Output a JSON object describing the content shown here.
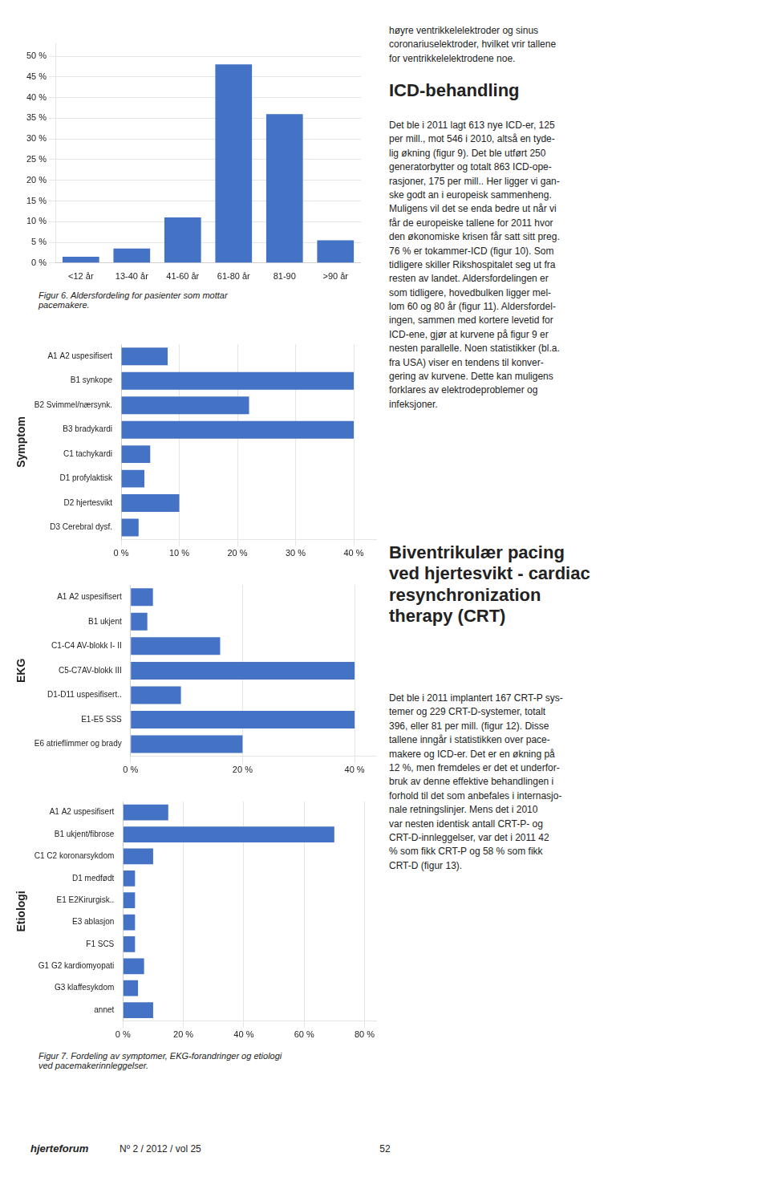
{
  "chart_data": [
    {
      "type": "bar",
      "categories": [
        "<12 år",
        "13-40 år",
        "41-60 år",
        "61-80 år",
        "81-90",
        ">90 år"
      ],
      "values": [
        1.5,
        3.5,
        11,
        48,
        36,
        5.5
      ],
      "color": "#4472C4",
      "ylim": [
        0,
        53
      ],
      "yticks": [
        {
          "value": 0,
          "label": "0 %"
        },
        {
          "value": 5,
          "label": "5 %"
        },
        {
          "value": 10,
          "label": "10 %"
        },
        {
          "value": 15,
          "label": "15 %"
        },
        {
          "value": 20,
          "label": "20 %"
        },
        {
          "value": 25,
          "label": "25 %"
        },
        {
          "value": 30,
          "label": "30 %"
        },
        {
          "value": 35,
          "label": "35 %"
        },
        {
          "value": 40,
          "label": "40 %"
        },
        {
          "value": 45,
          "label": "45 %"
        },
        {
          "value": 50,
          "label": "50 %"
        }
      ],
      "grid": true,
      "annotations": [
        "Figur 6. Aldersfordeling for pasienter som mottar\npacemakere."
      ]
    },
    {
      "type": "bar",
      "orientation": "horizontal",
      "ylabel": "Symptom",
      "categories": [
        "A1 A2 uspesifisert",
        "B1 synkope",
        "B2 Svimmel/nærsynk.",
        "B3 bradykardi",
        "C1 tachykardi",
        "D1 profylaktisk",
        "D2 hjertesvikt",
        "D3 Cerebral dysf."
      ],
      "values": [
        8,
        40,
        22,
        40,
        5,
        4,
        10,
        3
      ],
      "color": "#4472C4",
      "xlim": [
        0,
        44
      ],
      "xticks": [
        {
          "value": 0,
          "label": "0 %"
        },
        {
          "value": 10,
          "label": "10 %"
        },
        {
          "value": 20,
          "label": "20 %"
        },
        {
          "value": 30,
          "label": "30 %"
        },
        {
          "value": 40,
          "label": "40 %"
        }
      ],
      "grid": true
    },
    {
      "type": "bar",
      "orientation": "horizontal",
      "ylabel": "EKG",
      "categories": [
        "A1 A2 uspesifisert",
        "B1 ukjent",
        "C1-C4 AV-blokk I- II",
        "C5-C7AV-blokk III",
        "D1-D11 uspesifisert..",
        "E1-E5 SSS",
        "E6 atrieflimmer og brady"
      ],
      "values": [
        4,
        3,
        16,
        40,
        9,
        40,
        20
      ],
      "color": "#4472C4",
      "xlim": [
        0,
        44
      ],
      "xticks": [
        {
          "value": 0,
          "label": "0 %"
        },
        {
          "value": 20,
          "label": "20 %"
        },
        {
          "value": 40,
          "label": "40 %"
        }
      ],
      "grid": true
    },
    {
      "type": "bar",
      "orientation": "horizontal",
      "ylabel": "Etiologi",
      "categories": [
        "A1 A2 uspesifisert",
        "B1 ukjent/fibrose",
        "C1 C2 koronarsykdom",
        "D1 medfødt",
        "E1 E2Kirurgisk..",
        "E3 ablasjon",
        "F1 SCS",
        "G1 G2 kardiomyopati",
        "G3 klaffesykdom",
        "annet"
      ],
      "values": [
        15,
        70,
        10,
        4,
        4,
        4,
        4,
        7,
        5,
        10
      ],
      "color": "#4472C4",
      "xlim": [
        0,
        84
      ],
      "xticks": [
        {
          "value": 0,
          "label": "0 %"
        },
        {
          "value": 20,
          "label": "20 %"
        },
        {
          "value": 40,
          "label": "40 %"
        },
        {
          "value": 60,
          "label": "60 %"
        },
        {
          "value": 80,
          "label": "80 %"
        }
      ],
      "grid": true,
      "annotations": [
        "Figur 7. Fordeling av symptomer, EKG-forandringer og etiologi\nved pacemakerinnleggelser."
      ]
    }
  ],
  "annotations": [
    "høyre ventrikkelelektroder og sinus\ncoronariuselektroder, hvilket vrir tallene\nfor ventrikkelelektrodene noe.",
    "ICD-behandling",
    "Det ble i 2011 lagt 613 nye ICD-er, 125\nper mill., mot 546 i 2010, altså en tyde-\nlig økning (figur 9). Det ble utført 250\ngeneratorbytter og totalt 863 ICD-ope-\nrasjoner, 175 per mill.. Her ligger vi gan-\nske godt an i europeisk sammenheng.\nMuligens vil det se enda bedre ut når vi\nfår de europeiske tallene for 2011 hvor\nden økonomiske krisen får satt sitt preg.\n76 % er tokammer-ICD (figur 10). Som\ntidligere skiller Rikshospitalet seg ut fra\nresten av landet. Aldersfordelingen er\nsom tidligere, hovedbulken ligger mel-\nlom 60 og 80 år (figur 11). Aldersfordel-\ningen, sammen med kortere levetid for\nICD-ene, gjør at kurvene på figur 9 er\nnesten parallelle. Noen statistikker (bl.a.\nfra USA) viser en tendens til konver-\ngering av kurvene. Dette kan muligens\nforklares av elektrodeproblemer og\ninfeksjoner.",
    "Biventrikulær pacing\nved hjertesvikt - cardiac\nresynchronization\ntherapy (CRT)",
    "Det ble i 2011 implantert 167 CRT-P sys-\ntemer og 229 CRT-D-systemer, totalt\n396, eller 81 per mill. (figur 12). Disse\ntallene inngår i statistikken over pace-\nmakere og ICD-er. Det er en økning på\n12 %, men fremdeles er det et underfor-\nbruk av denne effektive behandlingen i\nforhold til det som anbefales i internasjo-\nnale retningslinjer. Mens det i 2010\nvar nesten identisk antall CRT-P- og\nCRT-D-innleggelser, var det i 2011 42\n% som fikk CRT-P og 58 % som fikk\nCRT-D (figur 13).",
    "hjerteforum",
    "Nº 2 / 2012 / vol 25",
    "52"
  ]
}
